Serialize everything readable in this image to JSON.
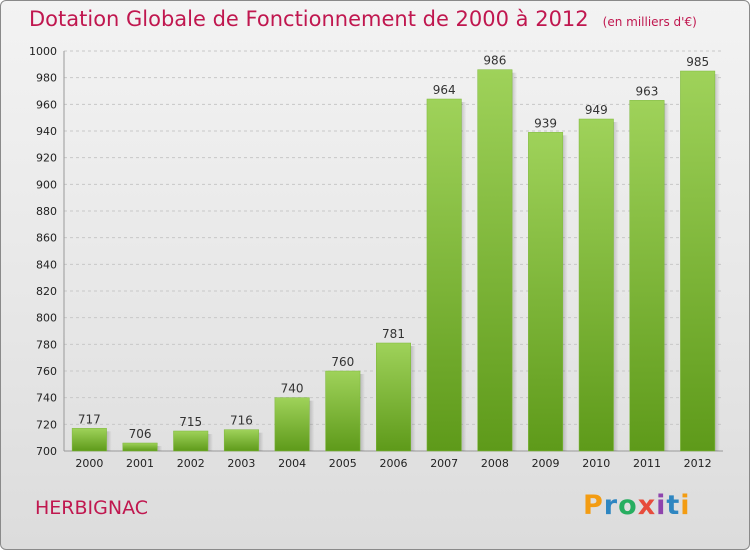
{
  "header": {
    "title": "Dotation Globale de Fonctionnement de 2000 à 2012",
    "unit": "(en milliers d'€)"
  },
  "footer": {
    "place": "HERBIGNAC",
    "logo_text": "Proxiti",
    "logo_colors": [
      "#f39c12",
      "#2e86c1",
      "#27ae60",
      "#e74c3c",
      "#8e44ad",
      "#2e86c1",
      "#f39c12"
    ]
  },
  "chart_data": {
    "type": "bar",
    "title": "Dotation Globale de Fonctionnement de 2000 à 2012",
    "subtitle": "(en milliers d'€)",
    "xlabel": "",
    "ylabel": "",
    "categories": [
      "2000",
      "2001",
      "2002",
      "2003",
      "2004",
      "2005",
      "2006",
      "2007",
      "2008",
      "2009",
      "2010",
      "2011",
      "2012"
    ],
    "values": [
      717,
      706,
      715,
      716,
      740,
      760,
      781,
      964,
      986,
      939,
      949,
      963,
      985
    ],
    "ylim": [
      700,
      1000
    ],
    "yticks": [
      700,
      720,
      740,
      760,
      780,
      800,
      820,
      840,
      860,
      880,
      900,
      920,
      940,
      960,
      980,
      1000
    ],
    "grid": true,
    "bar_color_top": "#9fd25a",
    "bar_color_bottom": "#5e9a1a"
  }
}
